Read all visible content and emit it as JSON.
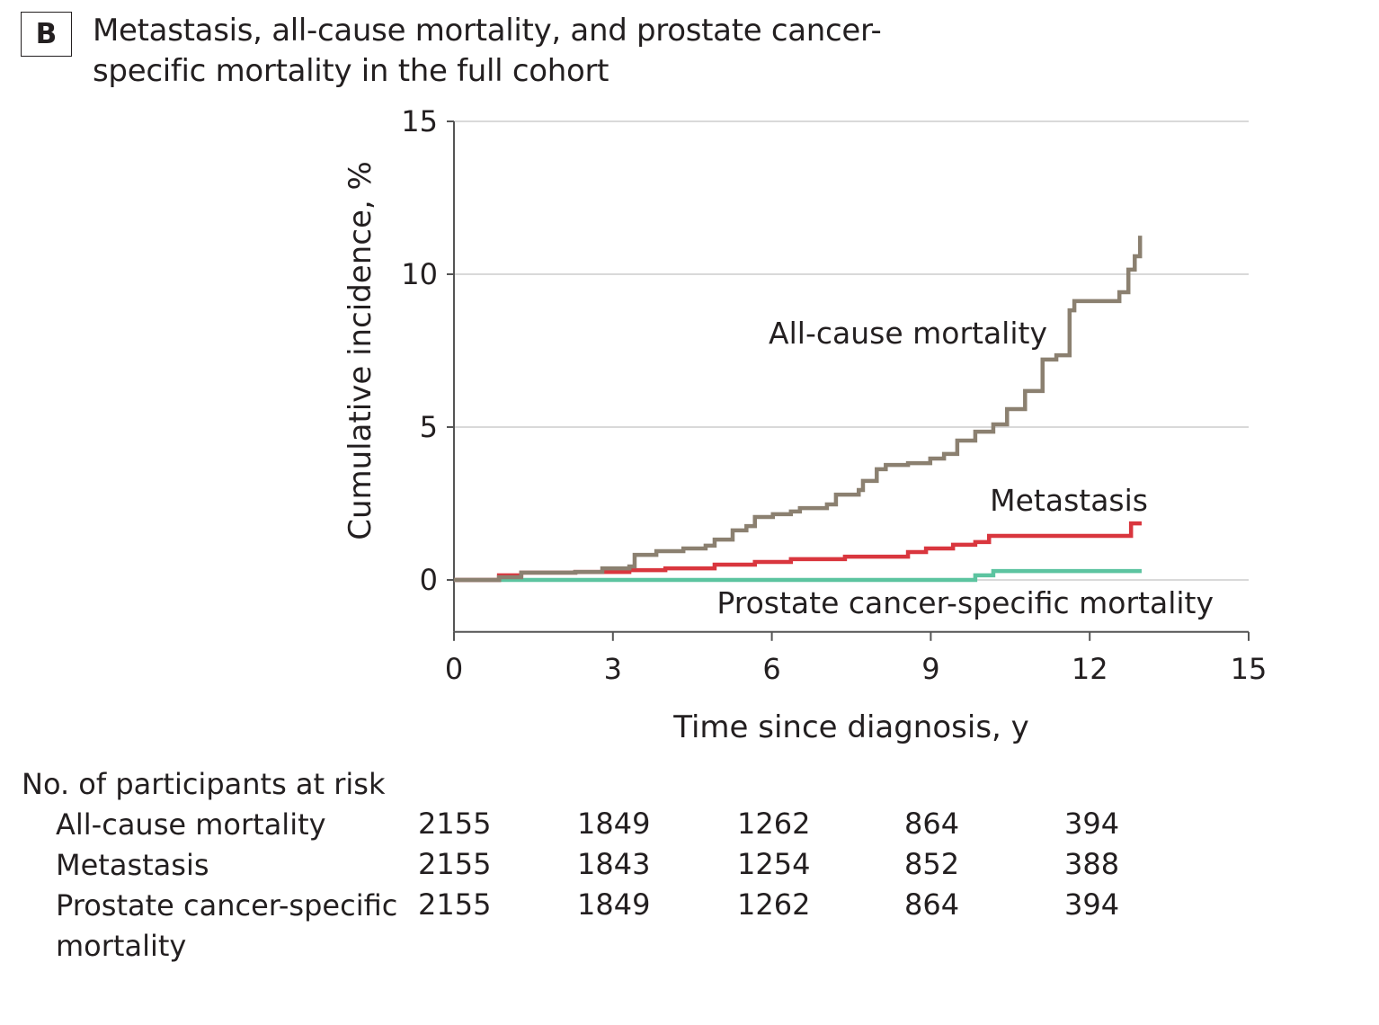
{
  "panel_label": "B",
  "chart_data": {
    "type": "line",
    "title": "Metastasis, all-cause mortality, and prostate cancer-specific mortality in the full cohort",
    "xlabel": "Time since diagnosis, y",
    "ylabel": "Cumulative incidence, %",
    "xlim": [
      0,
      15
    ],
    "ylim": [
      -1.7,
      15
    ],
    "xticks": [
      0,
      3,
      6,
      9,
      12,
      15
    ],
    "yticks": [
      0,
      5,
      10,
      15
    ],
    "grid": "horizontal",
    "step": true,
    "series": [
      {
        "name": "All-cause mortality",
        "color": "#8b8070",
        "x": [
          0,
          0.51,
          0.85,
          1.27,
          2.29,
          2.8,
          3.31,
          3.41,
          3.82,
          4.33,
          4.75,
          4.92,
          5.26,
          5.52,
          5.68,
          6.02,
          6.36,
          6.53,
          7.04,
          7.21,
          7.64,
          7.72,
          7.98,
          8.15,
          8.57,
          8.99,
          9.25,
          9.5,
          9.84,
          10.18,
          10.44,
          10.78,
          11.11,
          11.37,
          11.62,
          11.71,
          12.3,
          12.56,
          12.73,
          12.85,
          12.95
        ],
        "y": [
          0,
          0,
          0.09,
          0.24,
          0.26,
          0.38,
          0.44,
          0.82,
          0.94,
          1.03,
          1.12,
          1.32,
          1.62,
          1.76,
          2.06,
          2.15,
          2.24,
          2.35,
          2.47,
          2.79,
          2.94,
          3.24,
          3.62,
          3.76,
          3.82,
          3.97,
          4.12,
          4.56,
          4.85,
          5.09,
          5.59,
          6.18,
          7.21,
          7.35,
          8.82,
          9.12,
          9.12,
          9.41,
          10.15,
          10.59,
          11.26
        ]
      },
      {
        "name": "Metastasis",
        "color": "#d9363e",
        "x": [
          0,
          0.76,
          0.85,
          1.27,
          2.29,
          3.31,
          3.99,
          4.92,
          5.68,
          6.36,
          7.38,
          8.57,
          8.91,
          9.42,
          9.84,
          10.1,
          12.78,
          12.98
        ],
        "y": [
          0,
          0,
          0.15,
          0.24,
          0.26,
          0.32,
          0.38,
          0.5,
          0.59,
          0.68,
          0.76,
          0.91,
          1.03,
          1.15,
          1.24,
          1.44,
          1.85,
          1.85
        ]
      },
      {
        "name": "Prostate cancer-specific mortality",
        "color": "#5cc4a0",
        "x": [
          0,
          9.84,
          10.18,
          12.98
        ],
        "y": [
          0,
          0.15,
          0.29,
          0.29
        ]
      }
    ]
  },
  "risk_table": {
    "heading": "No. of participants at risk",
    "rows": [
      {
        "label": "All-cause mortality",
        "values": [
          "2155",
          "1849",
          "1262",
          "864",
          "394"
        ]
      },
      {
        "label": "Metastasis",
        "values": [
          "2155",
          "1843",
          "1254",
          "852",
          "388"
        ]
      },
      {
        "label": "Prostate cancer-specific",
        "label2": "mortality",
        "values": [
          "2155",
          "1849",
          "1262",
          "864",
          "394"
        ]
      }
    ]
  }
}
